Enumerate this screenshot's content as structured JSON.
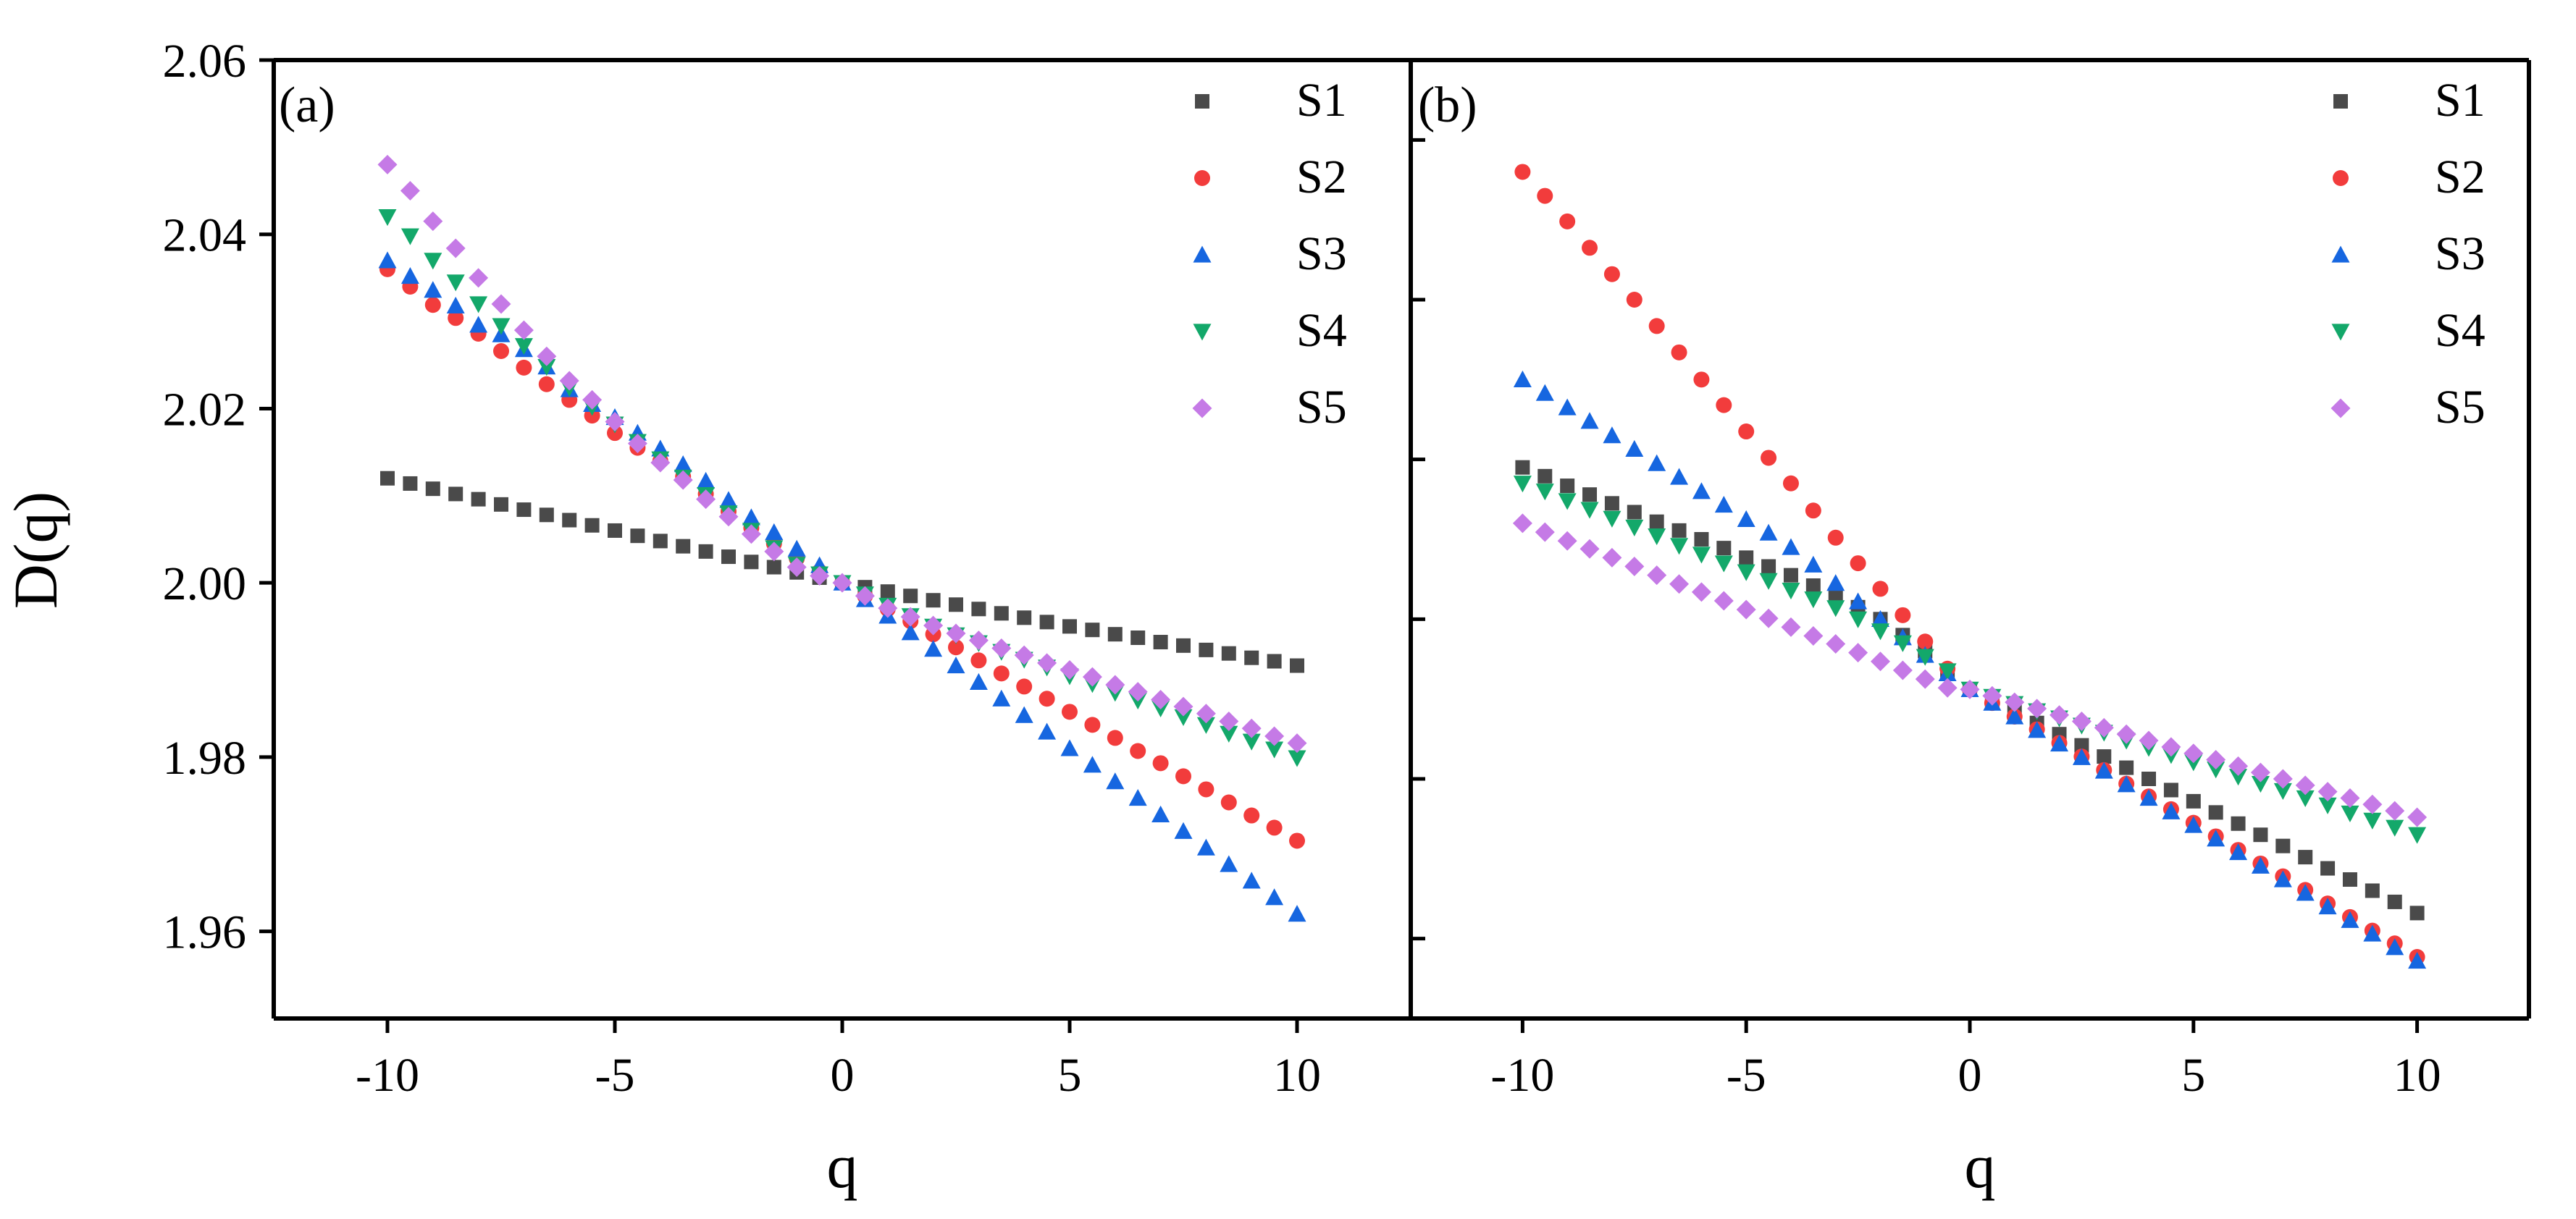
{
  "colors": {
    "S1": "#4a4a4a",
    "S2": "#f23c3c",
    "S3": "#1666e0",
    "S4": "#13a86a",
    "S5": "#c57ae6",
    "axis": "#000000"
  },
  "chart_data": [
    {
      "type": "scatter",
      "panel_label": "(a)",
      "xlabel": "q",
      "ylabel": "D(q)",
      "xlim": [
        -12.5,
        12.5
      ],
      "ylim": [
        1.95,
        2.06
      ],
      "xticks": [
        -10,
        -5,
        0,
        5,
        10
      ],
      "xtick_labels": [
        "-10",
        "-5",
        "0",
        "5",
        "10"
      ],
      "yticks": [
        1.96,
        1.98,
        2.0,
        2.02,
        2.04,
        2.06
      ],
      "ytick_labels": [
        "1.96",
        "1.98",
        "2.00",
        "2.02",
        "2.04",
        "2.06"
      ],
      "legend_position": "top-right",
      "grid": false,
      "x": [
        -10,
        -9.5,
        -9,
        -8.5,
        -8,
        -7.5,
        -7,
        -6.5,
        -6,
        -5.5,
        -5,
        -4.5,
        -4,
        -3.5,
        -3,
        -2.5,
        -2,
        -1.5,
        -1,
        -0.5,
        0,
        0.5,
        1,
        1.5,
        2,
        2.5,
        3,
        3.5,
        4,
        4.5,
        5,
        5.5,
        6,
        6.5,
        7,
        7.5,
        8,
        8.5,
        9,
        9.5,
        10
      ],
      "series": [
        {
          "name": "S1",
          "marker": "square",
          "values": [
            2.012,
            2.0114,
            2.0108,
            2.0102,
            2.0096,
            2.009,
            2.0084,
            2.0078,
            2.0072,
            2.0066,
            2.006,
            2.0054,
            2.0048,
            2.0042,
            2.0036,
            2.003,
            2.0024,
            2.0018,
            2.0012,
            2.0006,
            2.0,
            1.9995,
            1.999,
            1.9985,
            1.998,
            1.9975,
            1.997,
            1.9965,
            1.996,
            1.9955,
            1.995,
            1.9946,
            1.9941,
            1.9937,
            1.9932,
            1.9928,
            1.9923,
            1.9919,
            1.9914,
            1.991,
            1.9905
          ]
        },
        {
          "name": "S2",
          "marker": "circle",
          "values": [
            2.036,
            2.034,
            2.0319,
            2.0304,
            2.0286,
            2.0266,
            2.0247,
            2.0228,
            2.021,
            2.0192,
            2.0172,
            2.0155,
            2.014,
            2.0122,
            2.0102,
            2.0082,
            2.0063,
            2.0045,
            2.0028,
            2.0013,
            2.0,
            1.9985,
            1.997,
            1.9956,
            1.9941,
            1.9926,
            1.9911,
            1.9896,
            1.9881,
            1.9867,
            1.9852,
            1.9837,
            1.9822,
            1.9807,
            1.9793,
            1.9778,
            1.9763,
            1.9748,
            1.9733,
            1.9719,
            1.9704
          ]
        },
        {
          "name": "S3",
          "marker": "triangle-up",
          "values": [
            2.037,
            2.0352,
            2.0336,
            2.0318,
            2.0296,
            2.0285,
            2.0268,
            2.0248,
            2.0222,
            2.0205,
            2.019,
            2.0172,
            2.0154,
            2.0136,
            2.0117,
            2.0095,
            2.0075,
            2.0058,
            2.0039,
            2.002,
            2.0,
            1.9981,
            1.9962,
            1.9943,
            1.9924,
            1.9905,
            1.9886,
            1.9867,
            1.9848,
            1.9829,
            1.981,
            1.9791,
            1.9772,
            1.9753,
            1.9734,
            1.9715,
            1.9696,
            1.9677,
            1.9658,
            1.9639,
            1.962
          ]
        },
        {
          "name": "S4",
          "marker": "triangle-down",
          "values": [
            2.042,
            2.0398,
            2.037,
            2.0345,
            2.032,
            2.0295,
            2.0272,
            2.0248,
            2.0224,
            2.0202,
            2.0182,
            2.0162,
            2.0142,
            2.0121,
            2.0101,
            2.008,
            2.006,
            2.004,
            2.0021,
            2.001,
            2.0,
            1.9987,
            1.9974,
            1.9962,
            1.995,
            1.994,
            1.9931,
            1.9921,
            1.9912,
            1.9903,
            1.9893,
            1.9884,
            1.9874,
            1.9865,
            1.9856,
            1.9846,
            1.9837,
            1.9827,
            1.9818,
            1.9809,
            1.9799
          ]
        },
        {
          "name": "S5",
          "marker": "diamond",
          "values": [
            2.048,
            2.045,
            2.0415,
            2.0384,
            2.035,
            2.032,
            2.029,
            2.026,
            2.0232,
            2.021,
            2.0185,
            2.016,
            2.0138,
            2.0118,
            2.0096,
            2.0076,
            2.0056,
            2.0036,
            2.0018,
            2.0008,
            2.0,
            1.9985,
            1.9971,
            1.9961,
            1.9951,
            1.9942,
            1.9934,
            1.9925,
            1.9917,
            1.9908,
            1.99,
            1.9892,
            1.9883,
            1.9875,
            1.9866,
            1.9858,
            1.985,
            1.9841,
            1.9833,
            1.9824,
            1.9816
          ]
        }
      ]
    },
    {
      "type": "scatter",
      "panel_label": "(b)",
      "xlabel": "q",
      "ylabel": "",
      "xlim": [
        -12.5,
        12.5
      ],
      "ylim": [
        1.0,
        13.0
      ],
      "xticks": [
        -10,
        -5,
        0,
        5,
        10
      ],
      "xtick_labels": [
        "-10",
        "-5",
        "0",
        "5",
        "10"
      ],
      "yticks": [
        2,
        4,
        6,
        8,
        10,
        12
      ],
      "ytick_labels": [],
      "legend_position": "top-right",
      "grid": false,
      "x": [
        -10,
        -9.5,
        -9,
        -8.5,
        -8,
        -7.5,
        -7,
        -6.5,
        -6,
        -5.5,
        -5,
        -4.5,
        -4,
        -3.5,
        -3,
        -2.5,
        -2,
        -1.5,
        -1,
        -0.5,
        0,
        0.5,
        1,
        1.5,
        2,
        2.5,
        3,
        3.5,
        4,
        4.5,
        5,
        5.5,
        6,
        6.5,
        7,
        7.5,
        8,
        8.5,
        9,
        9.5,
        10
      ],
      "series": [
        {
          "name": "S1",
          "marker": "square",
          "values": [
            7.9,
            7.79,
            7.67,
            7.56,
            7.45,
            7.34,
            7.22,
            7.11,
            7.0,
            6.89,
            6.77,
            6.66,
            6.55,
            6.42,
            6.3,
            6.15,
            6.0,
            5.8,
            5.6,
            5.35,
            5.12,
            4.98,
            4.84,
            4.7,
            4.56,
            4.42,
            4.28,
            4.14,
            4.0,
            3.86,
            3.72,
            3.58,
            3.44,
            3.3,
            3.16,
            3.02,
            2.88,
            2.74,
            2.6,
            2.46,
            2.32
          ]
        },
        {
          "name": "S2",
          "marker": "circle",
          "values": [
            11.6,
            11.3,
            10.98,
            10.65,
            10.32,
            10.0,
            9.67,
            9.34,
            9.0,
            8.68,
            8.35,
            8.02,
            7.7,
            7.36,
            7.02,
            6.7,
            6.38,
            6.05,
            5.72,
            5.38,
            5.12,
            4.95,
            4.78,
            4.62,
            4.45,
            4.28,
            4.11,
            3.94,
            3.78,
            3.62,
            3.45,
            3.28,
            3.11,
            2.94,
            2.78,
            2.61,
            2.44,
            2.27,
            2.1,
            1.94,
            1.77
          ]
        },
        {
          "name": "S3",
          "marker": "triangle-up",
          "values": [
            9.0,
            8.83,
            8.65,
            8.48,
            8.3,
            8.13,
            7.95,
            7.78,
            7.6,
            7.43,
            7.25,
            7.08,
            6.9,
            6.68,
            6.45,
            6.22,
            6.0,
            5.77,
            5.55,
            5.32,
            5.12,
            4.95,
            4.78,
            4.61,
            4.44,
            4.27,
            4.1,
            3.93,
            3.76,
            3.59,
            3.42,
            3.25,
            3.08,
            2.91,
            2.74,
            2.57,
            2.4,
            2.23,
            2.06,
            1.89,
            1.72
          ]
        },
        {
          "name": "S4",
          "marker": "triangle-down",
          "values": [
            7.7,
            7.6,
            7.48,
            7.37,
            7.26,
            7.15,
            7.04,
            6.92,
            6.81,
            6.7,
            6.59,
            6.48,
            6.36,
            6.25,
            6.14,
            6.0,
            5.85,
            5.7,
            5.53,
            5.35,
            5.12,
            5.03,
            4.94,
            4.85,
            4.76,
            4.67,
            4.58,
            4.48,
            4.39,
            4.3,
            4.21,
            4.12,
            4.03,
            3.94,
            3.85,
            3.76,
            3.67,
            3.57,
            3.48,
            3.39,
            3.3
          ]
        },
        {
          "name": "S5",
          "marker": "diamond",
          "values": [
            7.2,
            7.09,
            6.98,
            6.88,
            6.77,
            6.66,
            6.55,
            6.44,
            6.34,
            6.23,
            6.12,
            6.01,
            5.9,
            5.79,
            5.69,
            5.58,
            5.47,
            5.36,
            5.25,
            5.14,
            5.12,
            5.04,
            4.96,
            4.88,
            4.8,
            4.72,
            4.64,
            4.56,
            4.48,
            4.4,
            4.32,
            4.24,
            4.16,
            4.08,
            4.0,
            3.92,
            3.84,
            3.76,
            3.68,
            3.6,
            3.52
          ]
        }
      ]
    }
  ]
}
